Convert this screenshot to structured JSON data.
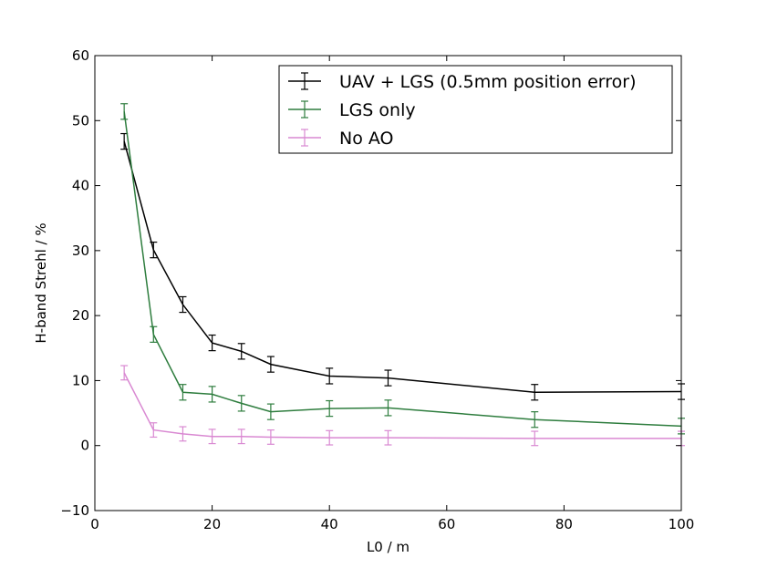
{
  "chart_data": {
    "type": "line",
    "title": "",
    "xlabel": "L0 / m",
    "ylabel": "H-band Strehl / %",
    "xlim": [
      0,
      100
    ],
    "ylim": [
      -10,
      60
    ],
    "x_ticks": [
      0,
      20,
      40,
      60,
      80,
      100
    ],
    "y_ticks": [
      -10,
      0,
      10,
      20,
      30,
      40,
      50,
      60
    ],
    "x_tick_labels": [
      "0",
      "20",
      "40",
      "60",
      "80",
      "100"
    ],
    "y_tick_labels": [
      "−10",
      "0",
      "10",
      "20",
      "30",
      "40",
      "50",
      "60"
    ],
    "grid": false,
    "legend_position": "top-right",
    "x": [
      5,
      10,
      15,
      20,
      25,
      30,
      40,
      50,
      75,
      100
    ],
    "series": [
      {
        "name": "UAV + LGS (0.5mm position error)",
        "color": "#000000",
        "x": [
          5,
          10,
          15,
          20,
          25,
          30,
          40,
          50,
          75,
          100
        ],
        "values": [
          46.8,
          30.1,
          21.7,
          15.8,
          14.5,
          12.5,
          10.7,
          10.4,
          8.2,
          8.3
        ],
        "errors": [
          1.2,
          1.2,
          1.2,
          1.2,
          1.2,
          1.2,
          1.2,
          1.2,
          1.2,
          1.2
        ]
      },
      {
        "name": "LGS only",
        "color": "#2e7d3e",
        "x": [
          5,
          10,
          15,
          20,
          25,
          30,
          40,
          50,
          75,
          100
        ],
        "values": [
          51.4,
          17.1,
          8.2,
          7.9,
          6.5,
          5.2,
          5.7,
          5.8,
          4.0,
          3.0
        ],
        "errors": [
          1.2,
          1.2,
          1.2,
          1.2,
          1.2,
          1.2,
          1.2,
          1.2,
          1.2,
          1.2
        ]
      },
      {
        "name": "No AO",
        "color": "#d989d2",
        "x": [
          5,
          10,
          15,
          20,
          25,
          30,
          40,
          50,
          75,
          100
        ],
        "values": [
          11.2,
          2.4,
          1.8,
          1.4,
          1.4,
          1.3,
          1.2,
          1.2,
          1.1,
          1.1
        ],
        "errors": [
          1.1,
          1.1,
          1.1,
          1.1,
          1.1,
          1.1,
          1.1,
          1.1,
          1.1,
          1.1
        ]
      }
    ]
  }
}
